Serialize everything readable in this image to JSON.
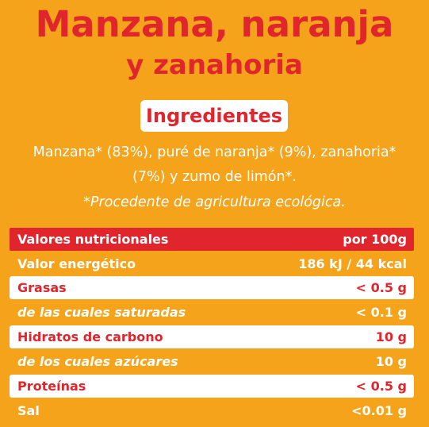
{
  "title": {
    "line1": "Manzana, naranja",
    "line2": "y zanahoria"
  },
  "ingredients": {
    "heading": "Ingredientes",
    "line1": "Manzana* (83%), puré de naranja* (9%), zanahoria*",
    "line2": "(7%) y zumo de limón*.",
    "note": "*Procedente de agricultura ecológica."
  },
  "nutrition": {
    "header": {
      "label": "Valores nutricionales",
      "value": "por 100g"
    },
    "rows": [
      {
        "label": "Valor energético",
        "value": "186 kJ / 44 kcal"
      },
      {
        "label": "Grasas",
        "value": "< 0.5 g"
      },
      {
        "label": "de las cuales saturadas",
        "value": "< 0.1 g"
      },
      {
        "label": "Hidratos de carbono",
        "value": "10 g"
      },
      {
        "label": "de los cuales azúcares",
        "value": "10 g"
      },
      {
        "label": "Proteínas",
        "value": "< 0.5 g"
      },
      {
        "label": "Sal",
        "value": "<0.01 g"
      }
    ]
  },
  "colors": {
    "background": "#f4a31a",
    "accent_red": "#e0262c",
    "white": "#ffffff"
  }
}
